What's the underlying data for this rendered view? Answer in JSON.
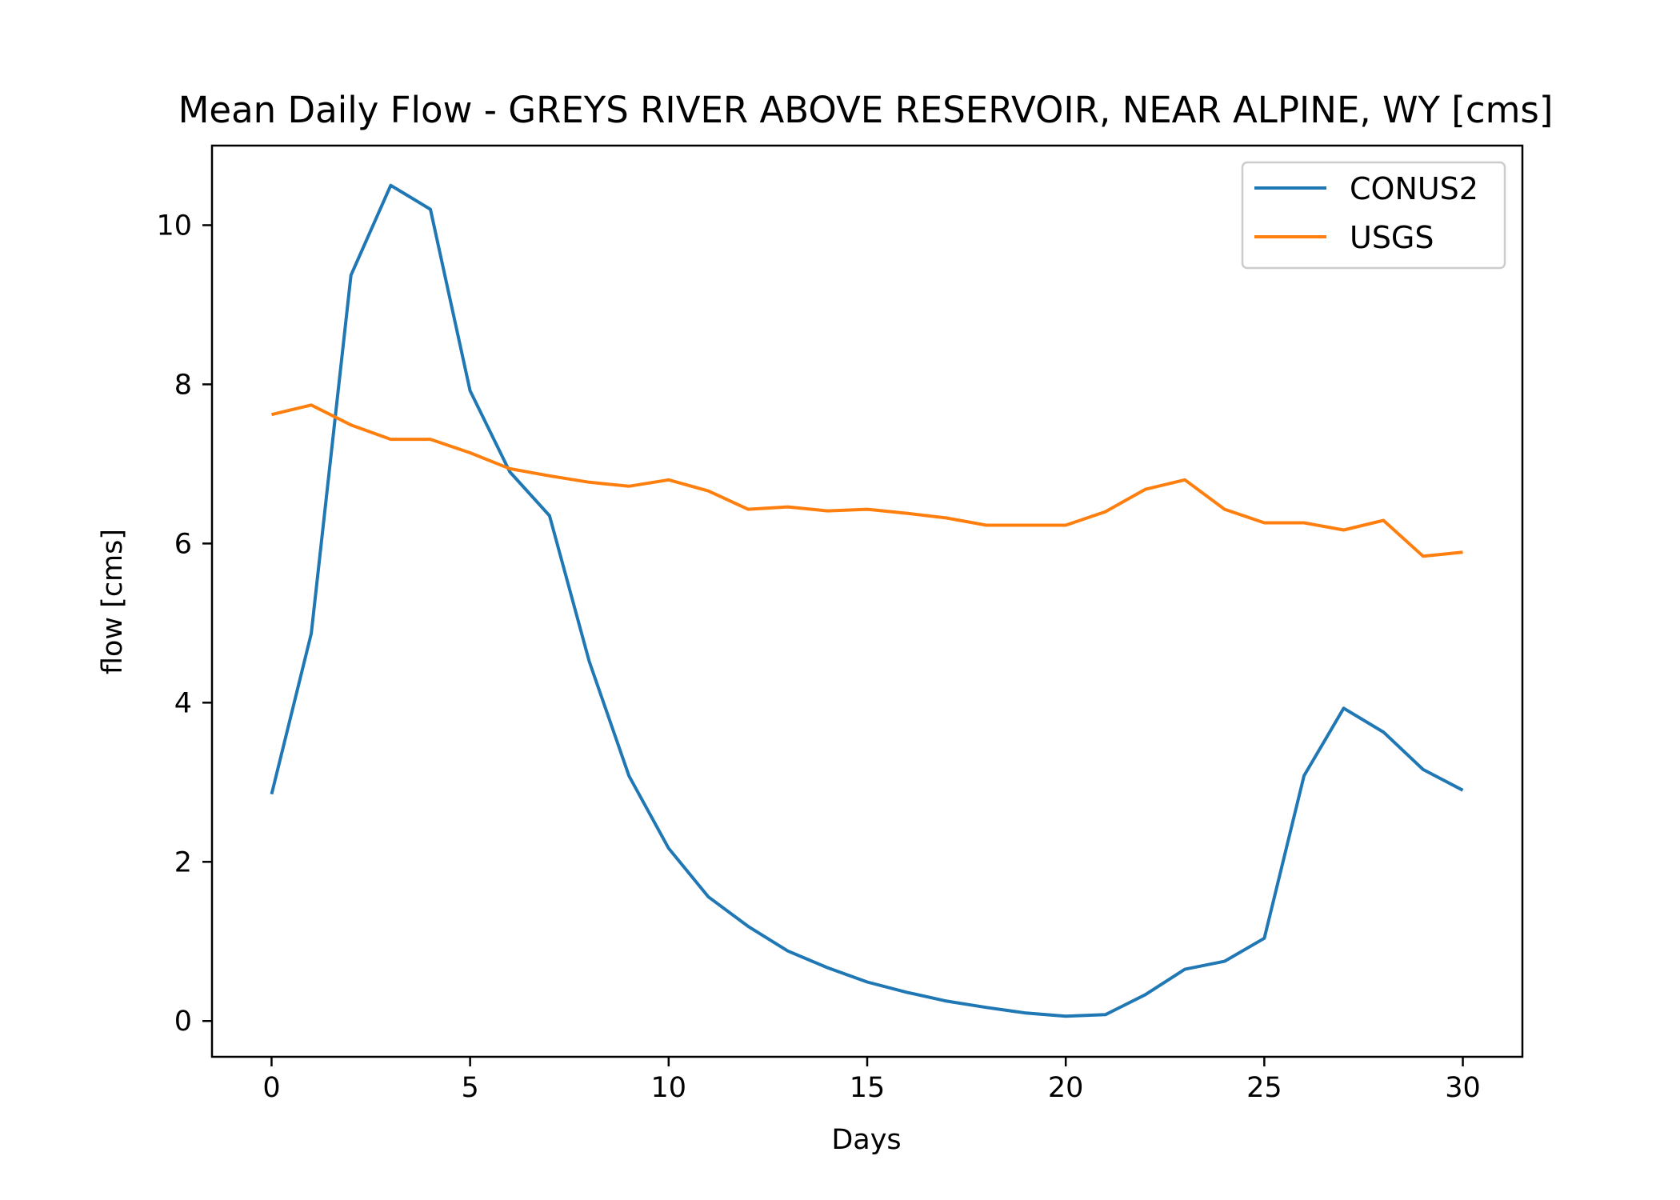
{
  "chart_data": {
    "type": "line",
    "title": "Mean Daily Flow - GREYS RIVER ABOVE RESERVOIR, NEAR ALPINE, WY [cms]",
    "xlabel": "Days",
    "ylabel": "flow [cms]",
    "xlim": [
      -1.5,
      31.5
    ],
    "ylim": [
      -0.45,
      11.0
    ],
    "xticks": [
      "0",
      "5",
      "10",
      "15",
      "20",
      "25",
      "30"
    ],
    "yticks": [
      "0",
      "2",
      "4",
      "6",
      "8",
      "10"
    ],
    "grid": false,
    "legend_position": "top-right",
    "x": [
      0,
      1,
      2,
      3,
      4,
      5,
      6,
      7,
      8,
      9,
      10,
      11,
      12,
      13,
      14,
      15,
      16,
      17,
      18,
      19,
      20,
      21,
      22,
      23,
      24,
      25,
      26,
      27,
      28,
      29,
      30
    ],
    "series": [
      {
        "name": "CONUS2",
        "color": "#1f77b4",
        "values": [
          2.85,
          4.87,
          9.37,
          10.5,
          10.2,
          7.92,
          6.9,
          6.35,
          4.52,
          3.08,
          2.17,
          1.56,
          1.19,
          0.88,
          0.67,
          0.49,
          0.36,
          0.25,
          0.17,
          0.1,
          0.06,
          0.08,
          0.33,
          0.65,
          0.75,
          1.04,
          3.08,
          3.93,
          3.63,
          3.16,
          2.9
        ]
      },
      {
        "name": "USGS",
        "color": "#ff7f0e",
        "values": [
          7.62,
          7.74,
          7.49,
          7.31,
          7.31,
          7.14,
          6.94,
          6.85,
          6.77,
          6.72,
          6.8,
          6.66,
          6.43,
          6.46,
          6.41,
          6.43,
          6.38,
          6.32,
          6.23,
          6.23,
          6.23,
          6.4,
          6.68,
          6.8,
          6.43,
          6.26,
          6.26,
          6.17,
          6.29,
          5.84,
          5.89
        ]
      }
    ]
  }
}
